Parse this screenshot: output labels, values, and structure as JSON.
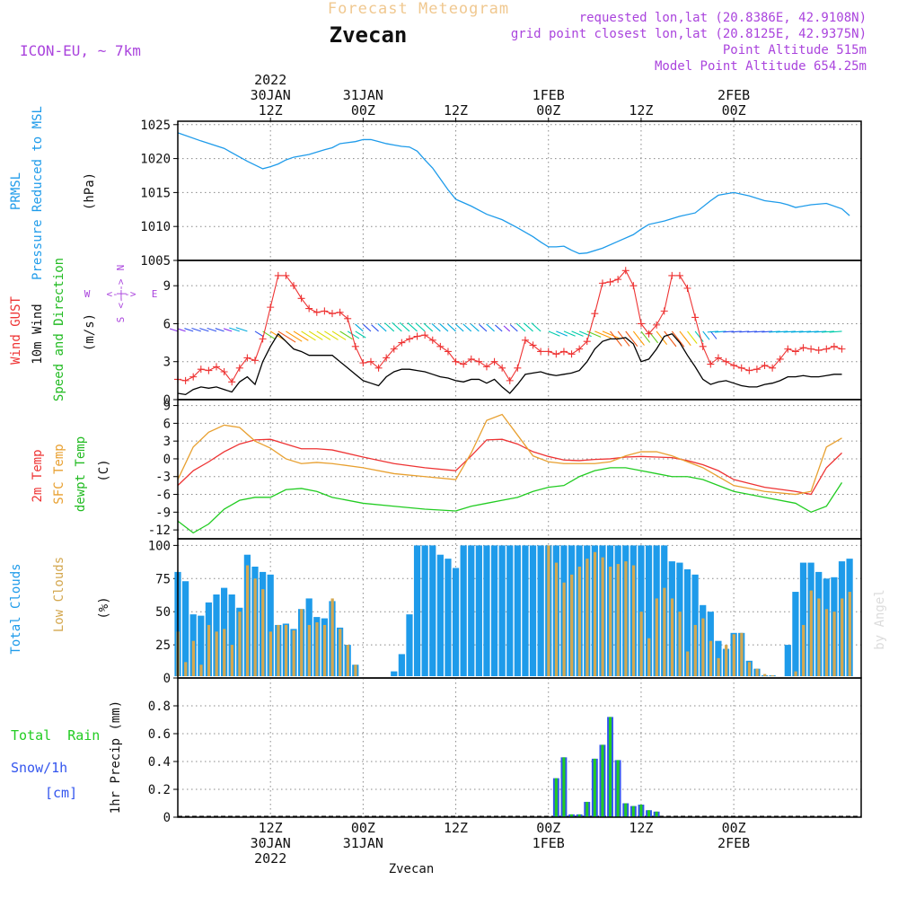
{
  "header": {
    "super_title": "Forecast Meteogram",
    "station": "Zvecan",
    "model": "ICON-EU, ~ 7km",
    "requested": "requested lon,lat (20.8386E, 42.9108N)",
    "gridpoint": "grid point closest lon,lat (20.8125E, 42.9375N)",
    "point_alt": "Point Altitude 515m",
    "model_alt": "Model Point Altitude 654.25m",
    "footer_station": "Zvecan",
    "credit": "by Angel"
  },
  "time_axis": {
    "top_labels": [
      {
        "h": 12,
        "lines": [
          "2022",
          "30JAN",
          "12Z"
        ]
      },
      {
        "h": 24,
        "lines": [
          "31JAN",
          "00Z"
        ]
      },
      {
        "h": 36,
        "lines": [
          "12Z"
        ]
      },
      {
        "h": 48,
        "lines": [
          "1FEB",
          "00Z"
        ]
      },
      {
        "h": 60,
        "lines": [
          "12Z"
        ]
      },
      {
        "h": 72,
        "lines": [
          "2FEB",
          "00Z"
        ]
      }
    ],
    "bottom_labels": [
      {
        "h": 12,
        "lines": [
          "12Z",
          "30JAN",
          "2022"
        ]
      },
      {
        "h": 24,
        "lines": [
          "00Z",
          "31JAN"
        ]
      },
      {
        "h": 36,
        "lines": [
          "12Z"
        ]
      },
      {
        "h": 48,
        "lines": [
          "00Z",
          "1FEB"
        ]
      },
      {
        "h": 60,
        "lines": [
          "12Z"
        ]
      },
      {
        "h": 72,
        "lines": [
          "00Z",
          "2FEB"
        ]
      }
    ]
  },
  "colors": {
    "pressure": "#1e9bea",
    "gust": "#ee3333",
    "wind": "#000000",
    "direction": "#22bb22",
    "temp2m": "#ee3333",
    "sfc": "#e8a030",
    "dewpt": "#22cc22",
    "total_clouds": "#1e9bea",
    "low_clouds": "#d4a850",
    "rain": "#22cc22",
    "snow": "#3355ee",
    "compass": "#aa44dd"
  },
  "panels": {
    "pressure": {
      "label1": "PRMSL",
      "label2": "Pressure Reduced to MSL",
      "unit": "(hPa)"
    },
    "wind": {
      "gust_label": "Wind GUST",
      "wind_label": "10m Wind",
      "dir_label": "Speed and Direction",
      "unit": "(m/s)",
      "compass_w": "W",
      "compass_e": "E",
      "compass_n": "N",
      "compass_s": "S"
    },
    "temp": {
      "t_label": "2m Temp",
      "sfc_label": "SFC Temp",
      "dew_label": "dewpt Temp",
      "unit": "(C)"
    },
    "clouds": {
      "total_label": "Total Clouds",
      "low_label": "Low Clouds",
      "unit": "(%)"
    },
    "precip": {
      "rain_label": "Total  Rain",
      "snow_label": "Snow/1h",
      "snow_unit": "[cm]",
      "axis_label": "1hr Precip (mm)"
    }
  },
  "chart_data": [
    {
      "type": "line",
      "title": "PRMSL Pressure Reduced to MSL",
      "ylabel": "(hPa)",
      "x_unit": "forecast hour since 30JAN 00Z",
      "ylim": [
        1005,
        1025.5
      ],
      "yticks": [
        1005,
        1010,
        1015,
        1020,
        1025
      ],
      "x": [
        0,
        3,
        6,
        9,
        11,
        12,
        13,
        14,
        15,
        17,
        19,
        20,
        21,
        23,
        24,
        25,
        26,
        27,
        28,
        29,
        30,
        31,
        32,
        33,
        34,
        35,
        36,
        38,
        40,
        42,
        44,
        46,
        47,
        48,
        49,
        50,
        51,
        52,
        53,
        55,
        57,
        59,
        60,
        61,
        63,
        65,
        67,
        69,
        70,
        72,
        74,
        76,
        78,
        79,
        80,
        82,
        84,
        86,
        87
      ],
      "series": [
        {
          "name": "PRMSL",
          "values": [
            1023.8,
            1022.6,
            1021.5,
            1019.6,
            1018.5,
            1018.8,
            1019.2,
            1019.8,
            1020.2,
            1020.6,
            1021.3,
            1021.6,
            1022.2,
            1022.5,
            1022.8,
            1022.8,
            1022.5,
            1022.2,
            1022.0,
            1021.8,
            1021.7,
            1021.1,
            1019.8,
            1018.6,
            1017.0,
            1015.4,
            1014.0,
            1013.0,
            1011.8,
            1011.0,
            1009.8,
            1008.5,
            1007.7,
            1007.0,
            1007.0,
            1007.1,
            1006.5,
            1006.0,
            1006.1,
            1006.8,
            1007.8,
            1008.8,
            1009.6,
            1010.3,
            1010.8,
            1011.5,
            1012.0,
            1013.8,
            1014.6,
            1015.0,
            1014.5,
            1013.8,
            1013.5,
            1013.2,
            1012.8,
            1013.2,
            1013.4,
            1012.6,
            1011.6
          ]
        }
      ]
    },
    {
      "type": "line",
      "title": "Wind GUST / 10m Wind Speed and Direction",
      "ylabel": "(m/s)",
      "x_unit": "forecast hour since 30JAN 00Z",
      "ylim": [
        0,
        11
      ],
      "yticks": [
        0,
        3,
        6,
        9
      ],
      "x": [
        0,
        1,
        2,
        3,
        4,
        5,
        6,
        7,
        8,
        9,
        10,
        11,
        12,
        13,
        14,
        15,
        16,
        17,
        18,
        19,
        20,
        21,
        22,
        23,
        24,
        25,
        26,
        27,
        28,
        29,
        30,
        31,
        32,
        33,
        34,
        35,
        36,
        37,
        38,
        39,
        40,
        41,
        42,
        43,
        44,
        45,
        46,
        47,
        48,
        49,
        50,
        51,
        52,
        53,
        54,
        55,
        56,
        57,
        58,
        59,
        60,
        61,
        62,
        63,
        64,
        65,
        66,
        67,
        68,
        69,
        70,
        71,
        72,
        73,
        74,
        75,
        76,
        77,
        78,
        79,
        80,
        81,
        82,
        83,
        84,
        85,
        86
      ],
      "series": [
        {
          "name": "Wind GUST",
          "values": [
            1.6,
            1.5,
            1.8,
            2.4,
            2.3,
            2.6,
            2.2,
            1.4,
            2.5,
            3.3,
            3.1,
            4.8,
            7.3,
            9.8,
            9.8,
            9.0,
            8.0,
            7.2,
            6.9,
            7.0,
            6.8,
            6.9,
            6.4,
            4.2,
            2.9,
            3.0,
            2.5,
            3.3,
            4.0,
            4.5,
            4.8,
            5.0,
            5.1,
            4.7,
            4.2,
            3.8,
            3.0,
            2.8,
            3.2,
            3.0,
            2.6,
            3.0,
            2.5,
            1.5,
            2.5,
            4.7,
            4.3,
            3.8,
            3.8,
            3.6,
            3.8,
            3.6,
            4.0,
            4.6,
            6.8,
            9.2,
            9.3,
            9.5,
            10.2,
            9.0,
            6.0,
            5.2,
            5.9,
            7.0,
            9.8,
            9.8,
            8.8,
            6.5,
            4.2,
            2.8,
            3.3,
            3.0,
            2.7,
            2.5,
            2.3,
            2.4,
            2.7,
            2.5,
            3.2,
            4.0,
            3.8,
            4.1,
            4.0,
            3.9,
            4.0,
            4.2,
            4.0
          ]
        },
        {
          "name": "10m Wind",
          "values": [
            0.5,
            0.4,
            0.8,
            1.0,
            0.9,
            1.0,
            0.8,
            0.6,
            1.4,
            1.8,
            1.2,
            3.0,
            4.2,
            5.2,
            4.6,
            4.0,
            3.8,
            3.5,
            3.5,
            3.5,
            3.5,
            3.0,
            2.5,
            2.0,
            1.5,
            1.3,
            1.1,
            1.8,
            2.2,
            2.4,
            2.4,
            2.3,
            2.2,
            2.0,
            1.8,
            1.7,
            1.5,
            1.4,
            1.6,
            1.6,
            1.3,
            1.6,
            1.0,
            0.5,
            1.2,
            2.0,
            2.1,
            2.2,
            2.0,
            1.9,
            2.0,
            2.1,
            2.3,
            3.0,
            4.0,
            4.6,
            4.8,
            4.8,
            4.9,
            4.4,
            3.0,
            3.2,
            4.0,
            5.0,
            5.2,
            4.5,
            3.5,
            2.6,
            1.6,
            1.2,
            1.4,
            1.5,
            1.3,
            1.1,
            1.0,
            1.0,
            1.2,
            1.3,
            1.5,
            1.8,
            1.8,
            1.9,
            1.8,
            1.8,
            1.9,
            2.0,
            2.0
          ]
        }
      ]
    },
    {
      "type": "line",
      "title": "2m Temp / SFC Temp / dewpt Temp",
      "ylabel": "(C)",
      "x_unit": "forecast hour since 30JAN 00Z",
      "ylim": [
        -13.5,
        10
      ],
      "yticks": [
        -12,
        -9,
        -6,
        -3,
        0,
        3,
        6,
        9
      ],
      "x": [
        0,
        2,
        4,
        6,
        8,
        10,
        12,
        14,
        16,
        18,
        20,
        24,
        28,
        32,
        36,
        38,
        40,
        42,
        44,
        46,
        48,
        50,
        52,
        54,
        56,
        58,
        60,
        62,
        64,
        66,
        68,
        70,
        72,
        76,
        80,
        82,
        84,
        86
      ],
      "series": [
        {
          "name": "2m Temp",
          "values": [
            -4.5,
            -2.0,
            -0.5,
            1.2,
            2.5,
            3.2,
            3.3,
            2.5,
            1.7,
            1.7,
            1.5,
            0.3,
            -0.8,
            -1.5,
            -2.0,
            0.5,
            3.2,
            3.3,
            2.5,
            1.2,
            0.4,
            -0.2,
            -0.3,
            -0.1,
            0.0,
            0.3,
            0.4,
            0.3,
            0.2,
            -0.3,
            -1.0,
            -2.0,
            -3.5,
            -4.8,
            -5.5,
            -6.0,
            -1.5,
            1.0
          ]
        },
        {
          "name": "SFC Temp",
          "values": [
            -3.5,
            2.0,
            4.5,
            5.7,
            5.3,
            3.0,
            1.8,
            0.0,
            -0.8,
            -0.6,
            -0.8,
            -1.5,
            -2.5,
            -3.0,
            -3.5,
            1.0,
            6.5,
            7.5,
            4.0,
            0.5,
            -0.5,
            -0.8,
            -0.8,
            -0.8,
            -0.5,
            0.5,
            1.2,
            1.2,
            0.5,
            -0.5,
            -1.5,
            -3.0,
            -4.5,
            -5.5,
            -6.0,
            -5.5,
            2.0,
            3.5
          ]
        },
        {
          "name": "dewpt Temp",
          "values": [
            -10.5,
            -12.5,
            -11.0,
            -8.5,
            -7.0,
            -6.5,
            -6.5,
            -5.2,
            -5.0,
            -5.5,
            -6.5,
            -7.5,
            -8.0,
            -8.5,
            -8.8,
            -8.0,
            -7.5,
            -7.0,
            -6.5,
            -5.5,
            -4.8,
            -4.5,
            -3.0,
            -2.0,
            -1.5,
            -1.5,
            -2.0,
            -2.5,
            -3.0,
            -3.0,
            -3.5,
            -4.5,
            -5.5,
            -6.5,
            -7.5,
            -9.0,
            -8.0,
            -4.0
          ]
        }
      ]
    },
    {
      "type": "bar",
      "title": "Total Clouds / Low Clouds",
      "ylabel": "(%)",
      "x_unit": "forecast hour since 30JAN 00Z",
      "ylim": [
        0,
        105
      ],
      "yticks": [
        0,
        25,
        50,
        75,
        100
      ],
      "x": [
        0,
        1,
        2,
        3,
        4,
        5,
        6,
        7,
        8,
        9,
        10,
        11,
        12,
        13,
        14,
        15,
        16,
        17,
        18,
        19,
        20,
        21,
        22,
        23,
        24,
        25,
        26,
        27,
        28,
        29,
        30,
        31,
        32,
        33,
        34,
        35,
        36,
        37,
        38,
        39,
        40,
        41,
        42,
        43,
        44,
        45,
        46,
        47,
        48,
        49,
        50,
        51,
        52,
        53,
        54,
        55,
        56,
        57,
        58,
        59,
        60,
        61,
        62,
        63,
        64,
        65,
        66,
        67,
        68,
        69,
        70,
        71,
        72,
        73,
        74,
        75,
        76,
        77,
        78,
        79,
        80,
        81,
        82,
        83,
        84,
        85,
        86,
        87
      ],
      "series": [
        {
          "name": "Total Clouds",
          "values": [
            80,
            73,
            48,
            47,
            57,
            63,
            68,
            63,
            53,
            93,
            84,
            80,
            78,
            40,
            41,
            37,
            52,
            60,
            46,
            45,
            58,
            38,
            25,
            10,
            0,
            0,
            0,
            0,
            5,
            18,
            48,
            100,
            100,
            100,
            93,
            90,
            83,
            100,
            100,
            100,
            100,
            100,
            100,
            100,
            100,
            100,
            100,
            100,
            100,
            100,
            100,
            100,
            100,
            100,
            100,
            100,
            100,
            100,
            100,
            100,
            100,
            100,
            100,
            100,
            88,
            87,
            82,
            78,
            55,
            50,
            28,
            22,
            34,
            34,
            13,
            7,
            2,
            2,
            1,
            25,
            65,
            87,
            87,
            80,
            75,
            76,
            88,
            90
          ]
        },
        {
          "name": "Low Clouds",
          "values": [
            35,
            12,
            28,
            10,
            40,
            35,
            37,
            25,
            50,
            85,
            75,
            67,
            35,
            40,
            40,
            36,
            52,
            40,
            42,
            40,
            60,
            37,
            25,
            10,
            0,
            0,
            0,
            0,
            0,
            0,
            0,
            0,
            0,
            0,
            0,
            0,
            0,
            0,
            0,
            0,
            0,
            0,
            0,
            0,
            0,
            0,
            0,
            0,
            100,
            87,
            72,
            78,
            84,
            90,
            95,
            91,
            84,
            86,
            88,
            85,
            50,
            30,
            60,
            68,
            60,
            50,
            20,
            40,
            45,
            28,
            15,
            25,
            33,
            34,
            12,
            7,
            3,
            2,
            1,
            0,
            5,
            40,
            66,
            60,
            52,
            50,
            60,
            65
          ]
        }
      ]
    },
    {
      "type": "bar",
      "title": "Total Rain / Snow/1h",
      "ylabel": "1hr Precip (mm)",
      "x_unit": "forecast hour since 30JAN 00Z",
      "ylim": [
        0,
        1.0
      ],
      "yticks": [
        0,
        0.2,
        0.4,
        0.6,
        0.8
      ],
      "x": [
        49,
        50,
        51,
        52,
        53,
        54,
        55,
        56,
        57,
        58,
        59,
        60,
        61,
        62,
        63,
        64
      ],
      "series": [
        {
          "name": "Total Rain",
          "values": [
            0.28,
            0.43,
            0.02,
            0.02,
            0.11,
            0.42,
            0.52,
            0.72,
            0.41,
            0.1,
            0.08,
            0.09,
            0.05,
            0.04,
            0,
            0
          ]
        },
        {
          "name": "Snow/1h",
          "values": [
            0,
            0,
            0,
            0,
            0,
            0,
            0,
            0,
            0,
            0,
            0,
            0,
            0,
            0,
            0,
            0
          ]
        }
      ]
    }
  ]
}
